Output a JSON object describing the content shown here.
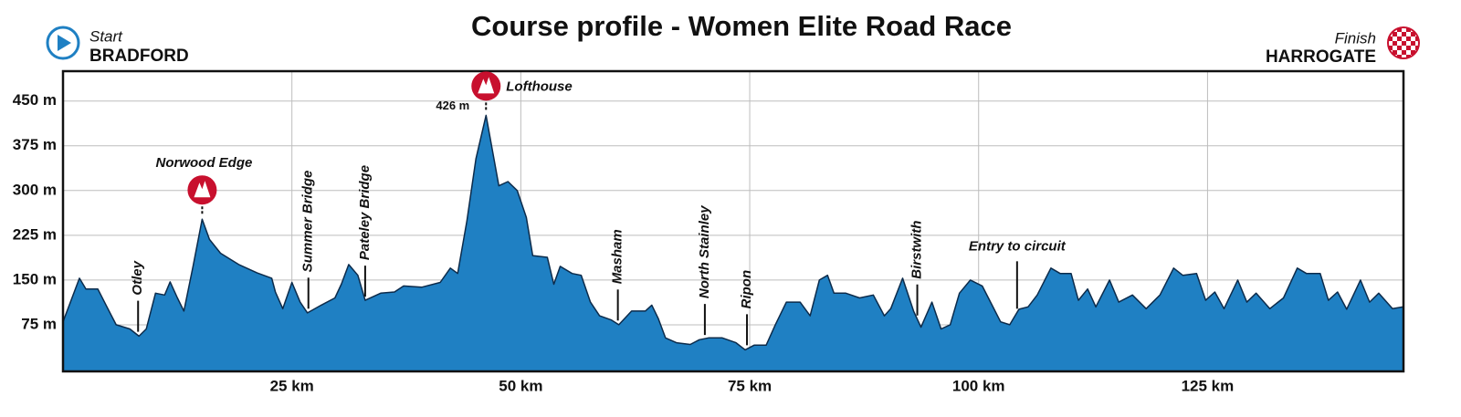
{
  "chart_data": {
    "type": "area",
    "title": "Course profile - Women Elite Road Race",
    "start": {
      "label": "Start",
      "place": "BRADFORD"
    },
    "finish": {
      "label": "Finish",
      "place": "HARROGATE"
    },
    "color": "#1f80c3",
    "line_color": "#0c2b4b",
    "grid": true,
    "x": [
      0,
      1.8,
      2.5,
      3.8,
      4.8,
      5.8,
      7.3,
      8.3,
      9.1,
      10.1,
      11.1,
      11.7,
      12.5,
      13.2,
      14.2,
      15.2,
      16.0,
      17.2,
      19.2,
      21.2,
      22.8,
      23.2,
      24.0,
      25.0,
      25.9,
      26.7,
      28.2,
      29.7,
      30.4,
      31.2,
      32.2,
      33.0,
      34.7,
      36.2,
      37.2,
      39.2,
      41.2,
      42.3,
      43.1,
      44.1,
      45.1,
      46.2,
      47.6,
      48.6,
      49.6,
      50.6,
      51.3,
      52.9,
      53.6,
      54.3,
      55.6,
      56.6,
      57.6,
      58.6,
      59.9,
      60.7,
      62.1,
      63.6,
      64.3,
      65.0,
      65.8,
      67.0,
      68.5,
      69.5,
      70.5,
      72.0,
      73.5,
      74.5,
      75.5,
      76.8,
      77.8,
      79.0,
      80.5,
      81.6,
      82.6,
      83.5,
      84.2,
      85.5,
      87.0,
      88.5,
      89.7,
      90.4,
      91.7,
      92.9,
      93.7,
      94.9,
      95.9,
      96.9,
      97.9,
      99.1,
      100.4,
      101.4,
      102.4,
      103.4,
      104.4,
      105.4,
      106.4,
      107.9,
      108.9,
      110.1,
      110.9,
      111.9,
      112.8,
      114.3,
      115.3,
      116.8,
      118.3,
      119.8,
      121.3,
      122.3,
      123.8,
      124.8,
      125.8,
      126.8,
      128.3,
      129.3,
      130.3,
      131.8,
      133.3,
      134.8,
      135.8,
      137.3,
      138.2,
      139.2,
      140.2,
      141.7,
      142.7,
      143.7,
      145.2,
      146.4
    ],
    "values": [
      80,
      153,
      135,
      135,
      105,
      75,
      68,
      56,
      68,
      128,
      125,
      147,
      120,
      98,
      173,
      252,
      218,
      195,
      176,
      162,
      153,
      130,
      102,
      146,
      113,
      95,
      108,
      120,
      143,
      176,
      158,
      116,
      128,
      130,
      140,
      138,
      146,
      170,
      161,
      248,
      353,
      426,
      308,
      315,
      300,
      255,
      191,
      188,
      143,
      173,
      161,
      158,
      113,
      90,
      83,
      75,
      98,
      98,
      108,
      86,
      53,
      45,
      42,
      50,
      53,
      53,
      45,
      33,
      41,
      41,
      75,
      113,
      113,
      90,
      150,
      158,
      128,
      128,
      120,
      125,
      90,
      102,
      153,
      98,
      71,
      113,
      68,
      75,
      128,
      150,
      140,
      110,
      80,
      75,
      101,
      105,
      125,
      170,
      161,
      161,
      116,
      135,
      105,
      150,
      113,
      125,
      102,
      125,
      170,
      158,
      161,
      116,
      130,
      102,
      150,
      113,
      128,
      102,
      120,
      170,
      161,
      161,
      116,
      130,
      101,
      150,
      113,
      128,
      102,
      105
    ],
    "xlim": [
      0,
      146.4
    ],
    "ylim": [
      0,
      500
    ],
    "xticks": [
      {
        "value": 25,
        "label": "25 km"
      },
      {
        "value": 50,
        "label": "50 km"
      },
      {
        "value": 75,
        "label": "75 km"
      },
      {
        "value": 100,
        "label": "100 km"
      },
      {
        "value": 125,
        "label": "125 km"
      }
    ],
    "yticks": [
      {
        "value": 75,
        "label": "75 m"
      },
      {
        "value": 150,
        "label": "150 m"
      },
      {
        "value": 225,
        "label": "225 m"
      },
      {
        "value": 300,
        "label": "300 m"
      },
      {
        "value": 375,
        "label": "375 m"
      },
      {
        "value": 450,
        "label": "450 m"
      }
    ],
    "annotations": [
      {
        "text": "Norwood Edge",
        "x": 15.2,
        "kind": "climb"
      },
      {
        "text": "Lofthouse",
        "x": 46.2,
        "kind": "climb",
        "elevation": {
          "value": 426,
          "label": "426 m"
        }
      },
      {
        "text": "Otley",
        "x": 8.2,
        "kind": "place"
      },
      {
        "text": "Summer Bridge",
        "x": 26.8,
        "kind": "place"
      },
      {
        "text": "Pateley Bridge",
        "x": 33.0,
        "kind": "place"
      },
      {
        "text": "Masham",
        "x": 60.6,
        "kind": "place"
      },
      {
        "text": "North Stainley",
        "x": 70.1,
        "kind": "place"
      },
      {
        "text": "Ripon",
        "x": 74.7,
        "kind": "place"
      },
      {
        "text": "Birstwith",
        "x": 93.3,
        "kind": "place"
      },
      {
        "text": "Entry to circuit",
        "x": 104.2,
        "kind": "circuit"
      }
    ]
  }
}
